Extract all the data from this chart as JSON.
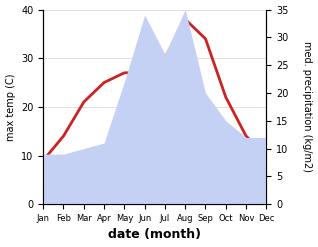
{
  "months": [
    "Jan",
    "Feb",
    "Mar",
    "Apr",
    "May",
    "Jun",
    "Jul",
    "Aug",
    "Sep",
    "Oct",
    "Nov",
    "Dec"
  ],
  "temp_max": [
    9,
    14,
    21,
    25,
    27,
    27,
    30,
    38,
    34,
    22,
    14,
    10
  ],
  "precipitation": [
    9,
    9,
    10,
    11,
    22,
    34,
    27,
    35,
    20,
    15,
    12,
    12
  ],
  "temp_color": "#cc2222",
  "precip_fill_color": "#c5d0f5",
  "temp_ylim": [
    0,
    40
  ],
  "precip_ylim": [
    0,
    35
  ],
  "xlabel": "date (month)",
  "ylabel_left": "max temp (C)",
  "ylabel_right": "med. precipitation (kg/m2)",
  "background_color": "#ffffff",
  "label_fontsize": 8,
  "tick_fontsize": 7,
  "xlabel_fontsize": 9
}
